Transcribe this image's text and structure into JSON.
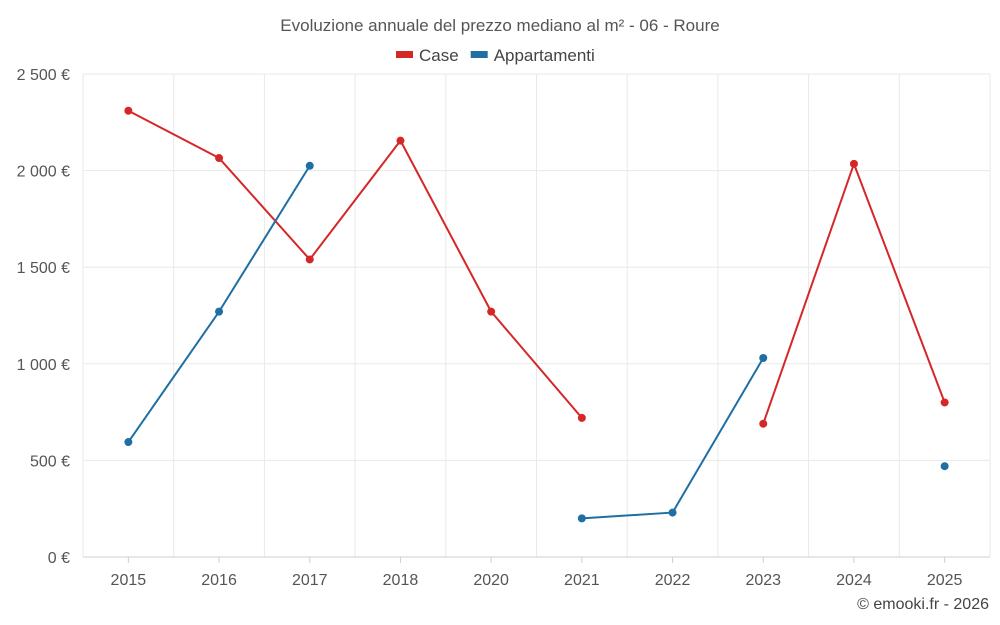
{
  "chart_data": {
    "type": "line",
    "title": "Evoluzione annuale del prezzo mediano al m² - 06 - Roure",
    "categories": [
      "2015",
      "2016",
      "2017",
      "2018",
      "2020",
      "2021",
      "2022",
      "2023",
      "2024",
      "2025"
    ],
    "series": [
      {
        "name": "Case",
        "color": "#d62728",
        "values": [
          2310,
          2065,
          1540,
          2155,
          1270,
          720,
          null,
          690,
          2035,
          800
        ]
      },
      {
        "name": "Appartamenti",
        "color": "#1f6fa3",
        "values": [
          595,
          1270,
          2025,
          null,
          null,
          200,
          230,
          1030,
          null,
          470
        ]
      }
    ],
    "ylim": [
      0,
      2500
    ],
    "yticks": [
      0,
      500,
      1000,
      1500,
      2000,
      2500
    ],
    "ytick_labels": [
      "0 €",
      "500 €",
      "1 000 €",
      "1 500 €",
      "2 000 €",
      "2 500 €"
    ],
    "xlabel": "",
    "ylabel": "",
    "grid": true,
    "legend": "top-center",
    "credit": "© emooki.fr - 2026"
  }
}
